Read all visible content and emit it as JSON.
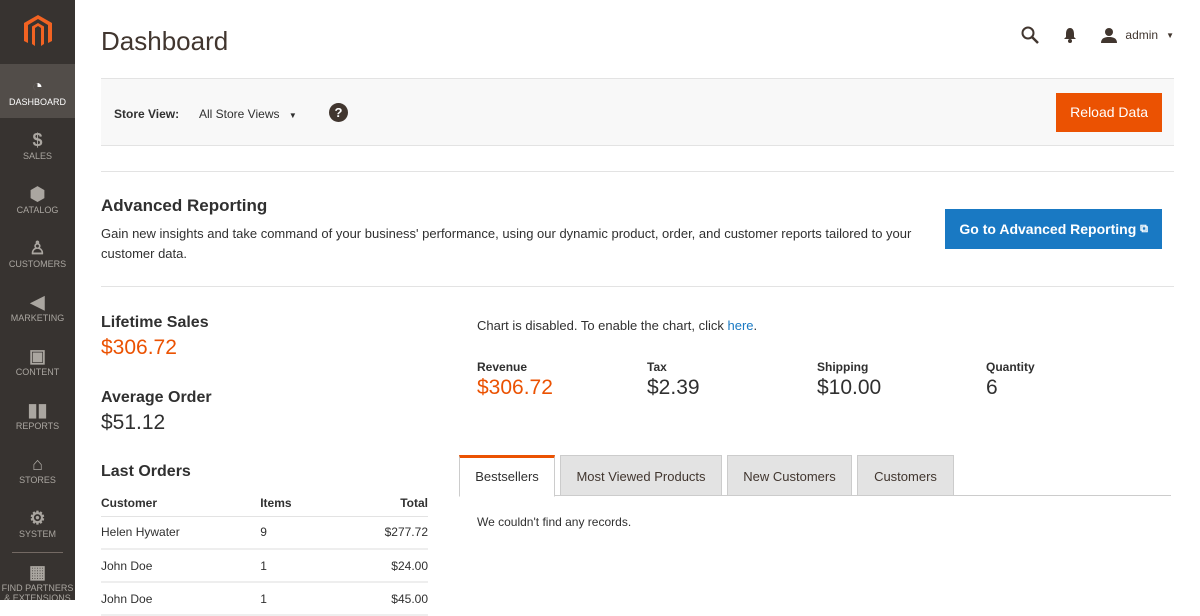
{
  "sidebar": {
    "items": [
      {
        "label": "DASHBOARD",
        "icon": "dashboard-gauge-icon",
        "active": true
      },
      {
        "label": "SALES",
        "icon": "dollar-icon"
      },
      {
        "label": "CATALOG",
        "icon": "box-icon"
      },
      {
        "label": "CUSTOMERS",
        "icon": "person-icon"
      },
      {
        "label": "MARKETING",
        "icon": "megaphone-icon"
      },
      {
        "label": "CONTENT",
        "icon": "layout-icon"
      },
      {
        "label": "REPORTS",
        "icon": "bar-chart-icon"
      },
      {
        "label": "STORES",
        "icon": "storefront-icon"
      },
      {
        "label": "SYSTEM",
        "icon": "gear-icon"
      },
      {
        "label": "FIND PARTNERS & EXTENSIONS",
        "icon": "lego-brick-icon"
      }
    ]
  },
  "header": {
    "title": "Dashboard",
    "user": "admin"
  },
  "store": {
    "label": "Store View:",
    "value": "All Store Views",
    "reload": "Reload Data"
  },
  "advanced": {
    "title": "Advanced Reporting",
    "text": "Gain new insights and take command of your business' performance, using our dynamic product, order, and customer reports tailored to your customer data.",
    "button": "Go to Advanced Reporting"
  },
  "lifetime": {
    "label": "Lifetime Sales",
    "value": "$306.72"
  },
  "average": {
    "label": "Average Order",
    "value": "$51.12"
  },
  "chart": {
    "message": "Chart is disabled. To enable the chart, click ",
    "link": "here",
    "period": "."
  },
  "totals": [
    {
      "label": "Revenue",
      "value": "$306.72"
    },
    {
      "label": "Tax",
      "value": "$2.39"
    },
    {
      "label": "Shipping",
      "value": "$10.00"
    },
    {
      "label": "Quantity",
      "value": "6"
    }
  ],
  "orders": {
    "title": "Last Orders",
    "headers": [
      "Customer",
      "Items",
      "Total"
    ],
    "rows": [
      [
        "Helen Hywater",
        "9",
        "$277.72"
      ],
      [
        "John Doe",
        "1",
        "$24.00"
      ],
      [
        "John Doe",
        "1",
        "$45.00"
      ]
    ]
  },
  "tabs": [
    "Bestsellers",
    "Most Viewed Products",
    "New Customers",
    "Customers"
  ],
  "no_records": "We couldn't find any records.",
  "colors": {
    "accent": "#eb5202",
    "link": "#1979c3",
    "sidebar": "#373330"
  }
}
